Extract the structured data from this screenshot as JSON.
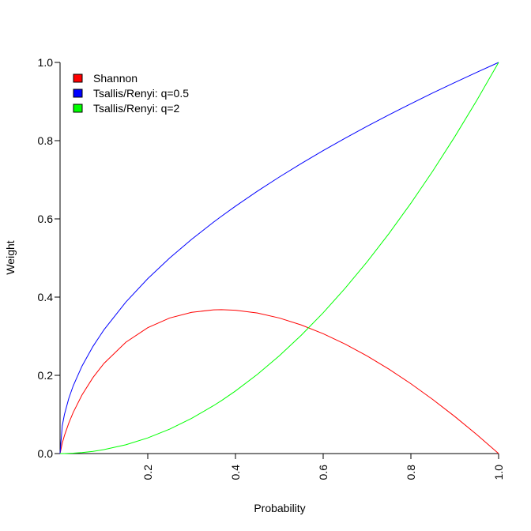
{
  "chart_data": {
    "type": "line",
    "title": "",
    "xlabel": "Probability",
    "ylabel": "Weight",
    "xlim": [
      0,
      1
    ],
    "ylim": [
      0,
      1
    ],
    "x_ticks": [
      0.2,
      0.4,
      0.6,
      0.8,
      1.0
    ],
    "x_tick_labels": [
      "0.2",
      "0.4",
      "0.6",
      "0.8",
      "1.0"
    ],
    "y_ticks": [
      0.0,
      0.2,
      0.4,
      0.6,
      0.8,
      1.0
    ],
    "y_tick_labels": [
      "0.0",
      "0.2",
      "0.4",
      "0.6",
      "0.8",
      "1.0"
    ],
    "grid": false,
    "legend_position": "top-left",
    "x": [
      0.005,
      0.01,
      0.02,
      0.03,
      0.05,
      0.075,
      0.1,
      0.15,
      0.2,
      0.25,
      0.3,
      0.35,
      0.3679,
      0.4,
      0.45,
      0.5,
      0.55,
      0.6,
      0.65,
      0.7,
      0.75,
      0.8,
      0.85,
      0.9,
      0.95,
      1.0
    ],
    "series": [
      {
        "name": "Shannon",
        "color": "#FF0000",
        "values": [
          0.0265,
          0.0461,
          0.0782,
          0.1052,
          0.1498,
          0.1943,
          0.2303,
          0.2846,
          0.3219,
          0.3466,
          0.3612,
          0.3674,
          0.3679,
          0.3665,
          0.3593,
          0.3466,
          0.3288,
          0.3065,
          0.28,
          0.2497,
          0.2158,
          0.1785,
          0.1381,
          0.0948,
          0.0487,
          0.0
        ]
      },
      {
        "name": "Tsallis/Renyi: q=0.5",
        "color": "#0000FF",
        "values": [
          0.0707,
          0.1,
          0.1414,
          0.1732,
          0.2236,
          0.2739,
          0.3162,
          0.3873,
          0.4472,
          0.5,
          0.5477,
          0.5916,
          0.6066,
          0.6325,
          0.6708,
          0.7071,
          0.7416,
          0.7746,
          0.8062,
          0.8367,
          0.866,
          0.8944,
          0.922,
          0.9487,
          0.9747,
          1.0
        ]
      },
      {
        "name": "Tsallis/Renyi: q=2",
        "color": "#00FF00",
        "values": [
          0.0,
          0.0001,
          0.0004,
          0.0009,
          0.0025,
          0.0056,
          0.01,
          0.0225,
          0.04,
          0.0625,
          0.09,
          0.1225,
          0.1353,
          0.16,
          0.2025,
          0.25,
          0.3025,
          0.36,
          0.4225,
          0.49,
          0.5625,
          0.64,
          0.7225,
          0.81,
          0.9025,
          1.0
        ]
      }
    ]
  }
}
